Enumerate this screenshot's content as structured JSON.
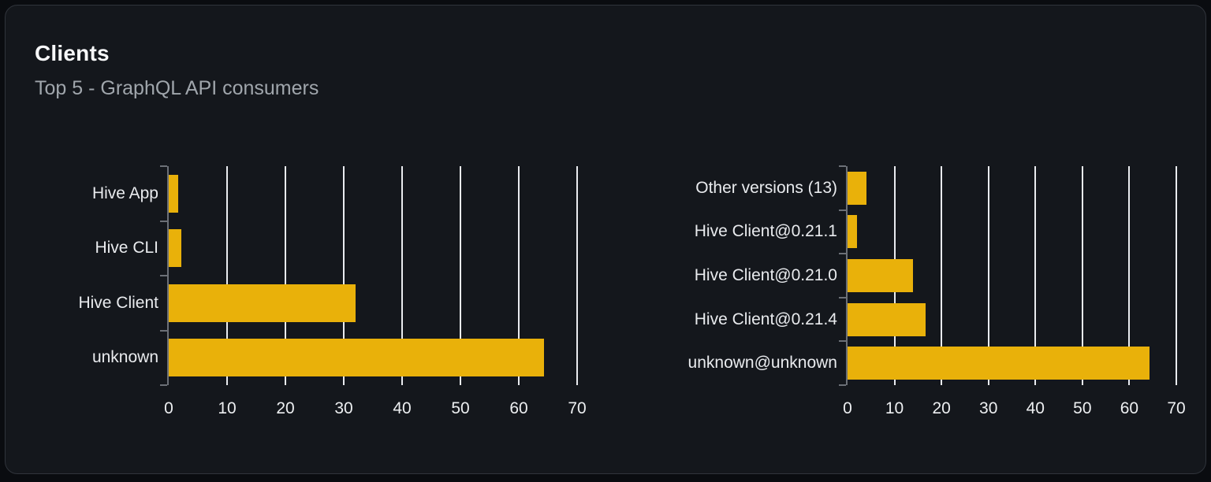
{
  "card": {
    "title": "Clients",
    "subtitle": "Top 5 - GraphQL API consumers"
  },
  "colors": {
    "page_background": "#0a0c10",
    "card_background": "#14171c",
    "card_border": "#30343b",
    "bar": "#e9b10a",
    "gridline": "#e9ebef",
    "axis": "#6c7077",
    "text_primary": "#f7f8f9",
    "text_secondary": "#a0a6ac",
    "category_label": "#e9ebee",
    "tick_label": "#edeff1"
  },
  "chart_data": [
    {
      "type": "bar",
      "name": "clients-by-name",
      "orientation": "horizontal",
      "categories": [
        "Hive App",
        "Hive CLI",
        "Hive Client",
        "unknown"
      ],
      "values": [
        1.6,
        2.2,
        32,
        64.3
      ],
      "xlim": [
        0,
        70
      ],
      "xticks": [
        0,
        10,
        20,
        30,
        40,
        50,
        60,
        70
      ],
      "grid": true,
      "legend": false,
      "title": "",
      "xlabel": "",
      "ylabel": ""
    },
    {
      "type": "bar",
      "name": "clients-by-version",
      "orientation": "horizontal",
      "categories": [
        "Other versions (13)",
        "Hive Client@0.21.1",
        "Hive Client@0.21.0",
        "Hive Client@0.21.4",
        "unknown@unknown"
      ],
      "values": [
        4,
        2,
        14,
        16.6,
        64.3
      ],
      "xlim": [
        0,
        70
      ],
      "xticks": [
        0,
        10,
        20,
        30,
        40,
        50,
        60,
        70
      ],
      "grid": true,
      "legend": false,
      "title": "",
      "xlabel": "",
      "ylabel": ""
    }
  ]
}
